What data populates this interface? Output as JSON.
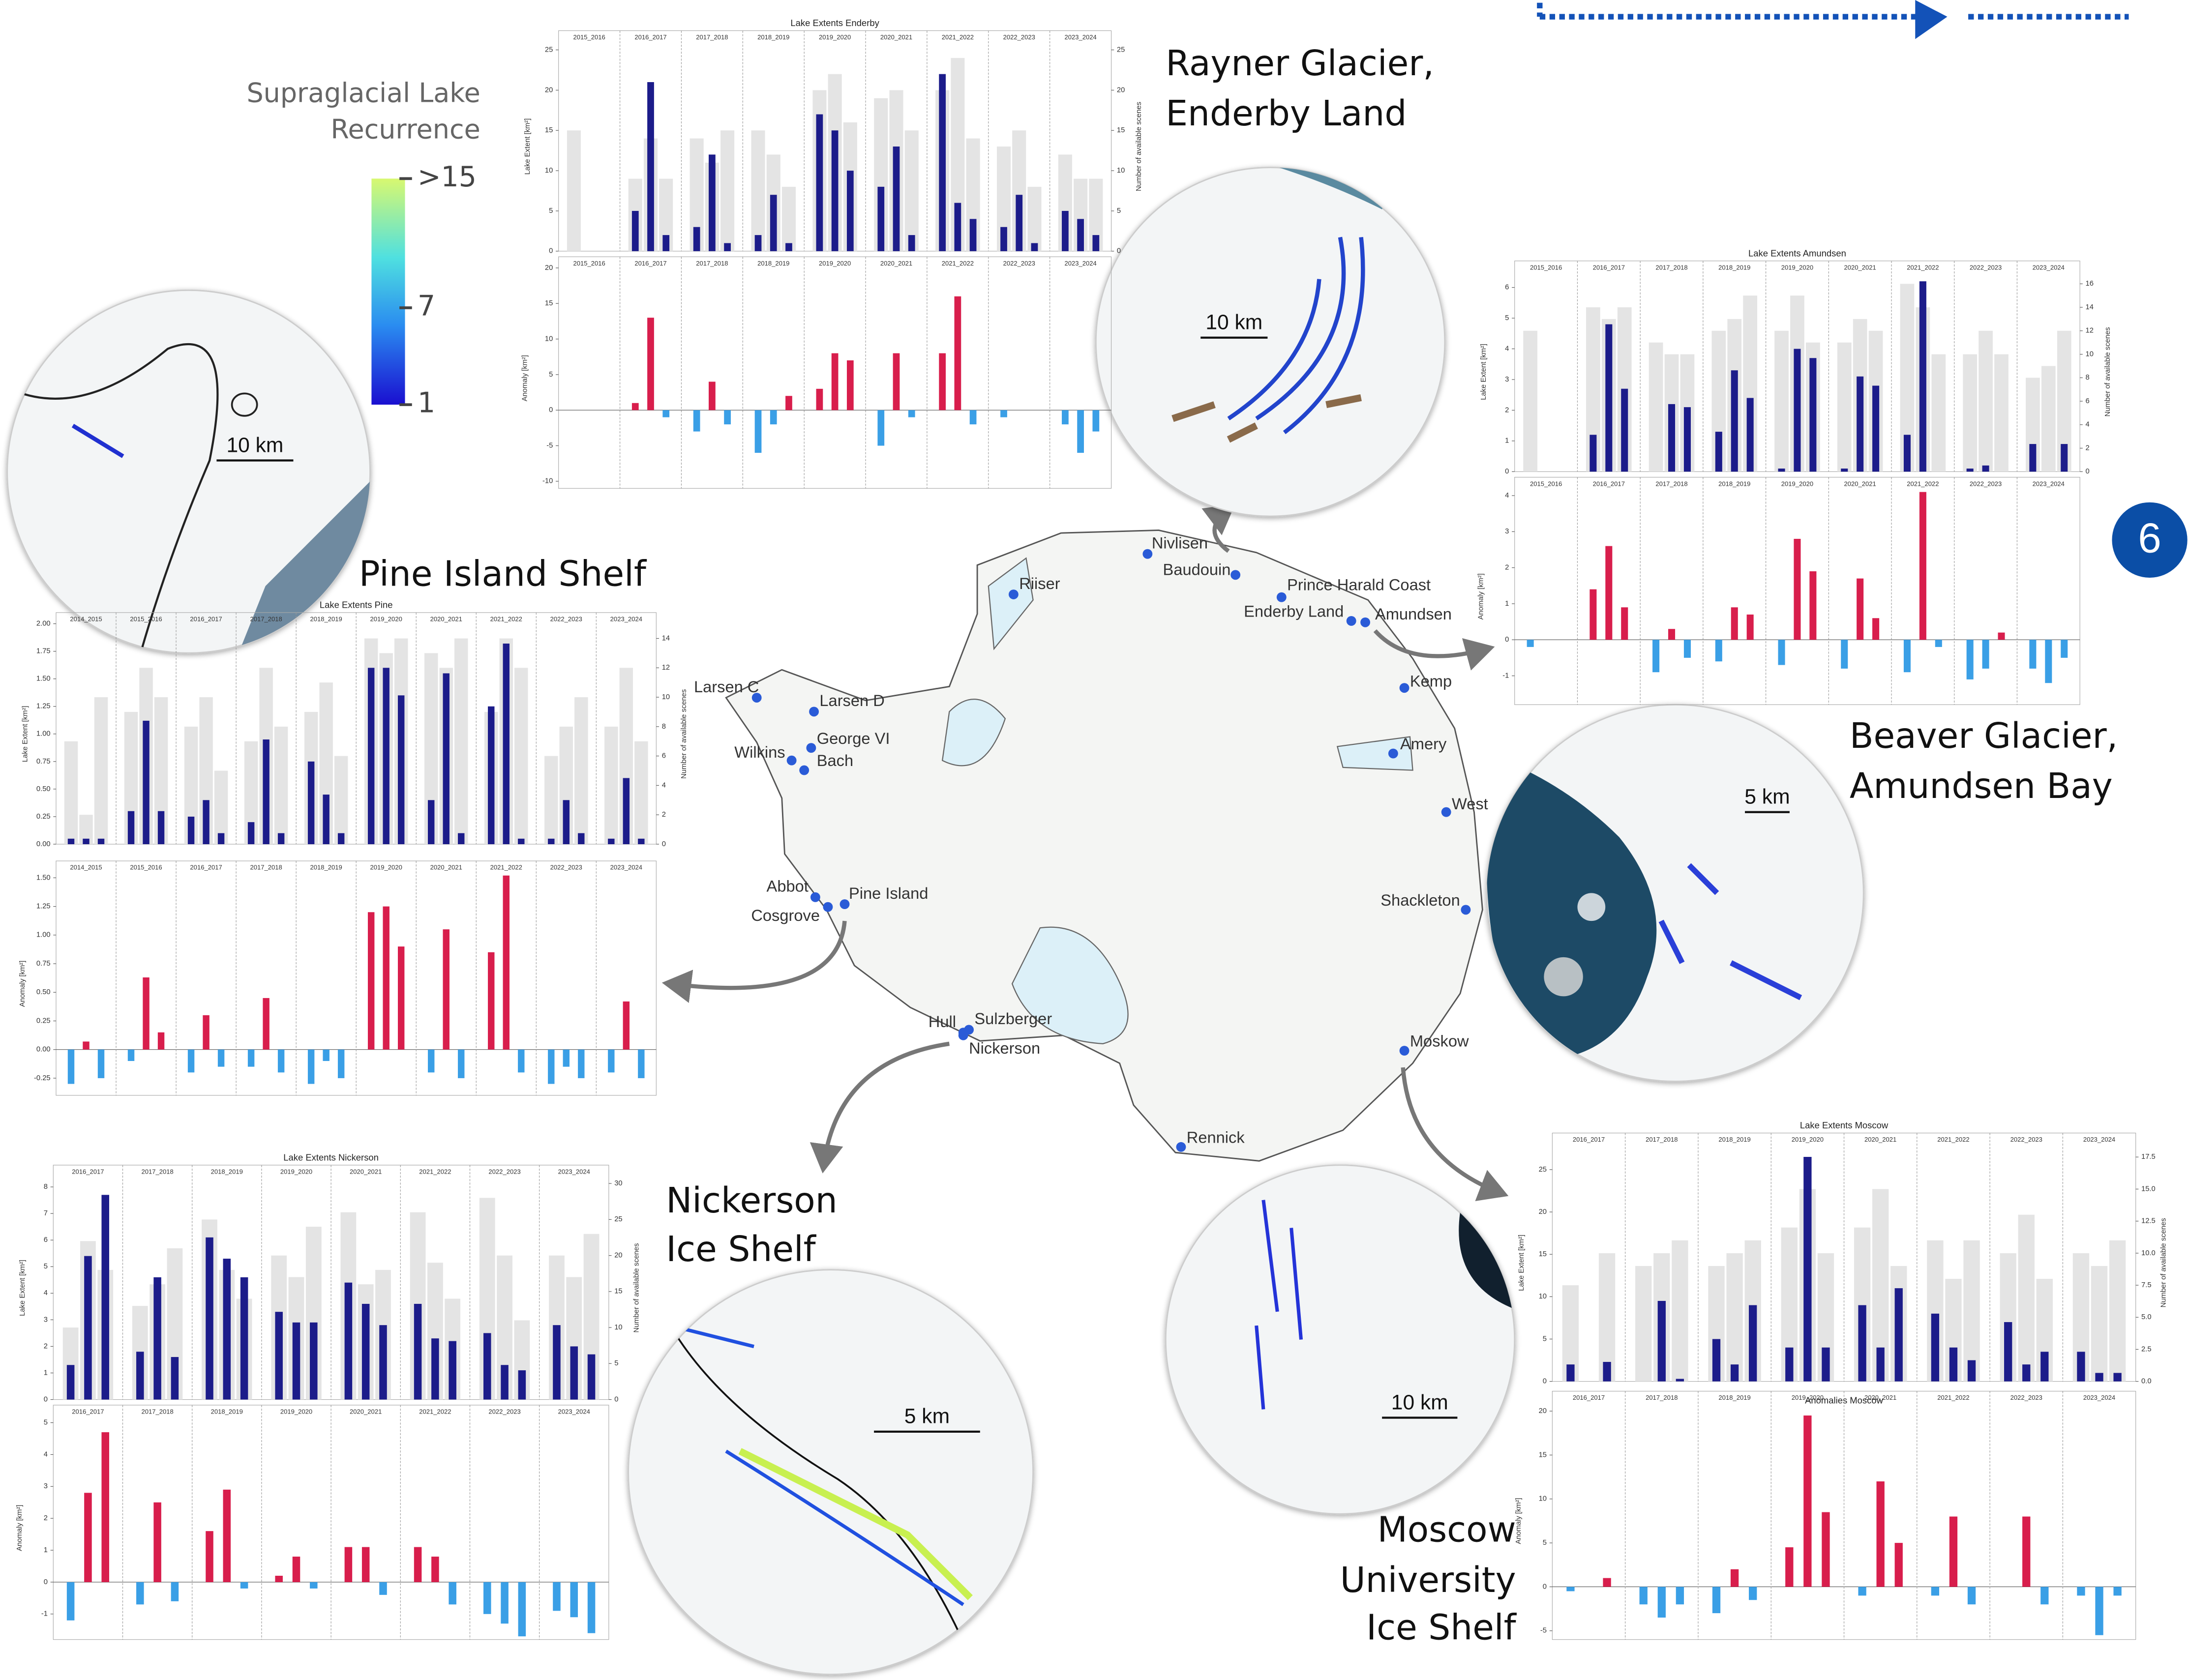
{
  "legend": {
    "title": [
      "Supraglacial Lake",
      "Recurrence"
    ],
    "ticks": [
      {
        "value": 15,
        "label": ">15"
      },
      7,
      1
    ]
  },
  "badge": "6",
  "sites": [
    "Nivlisen",
    "Baudouin",
    "Riiser",
    "Prince Harald Coast",
    "Enderby Land",
    "Amundsen",
    "Larsen C",
    "Larsen D",
    "George VI",
    "Wilkins",
    "Bach",
    "Kemp",
    "Amery",
    "West",
    "Abbot",
    "Pine Island",
    "Cosgrove",
    "Shackleton",
    "Hull",
    "Sulzberger",
    "Nickerson",
    "Moskow",
    "Rennick"
  ],
  "insets": [
    {
      "title": [
        "Pine Island Shelf"
      ],
      "scale": "10 km"
    },
    {
      "title": [
        "Rayner Glacier,",
        "Enderby Land"
      ],
      "scale": "10 km"
    },
    {
      "title": [
        "Beaver Glacier,",
        "Amundsen Bay"
      ],
      "scale": "5 km"
    },
    {
      "title": [
        "Nickerson",
        "Ice Shelf"
      ],
      "scale": "5 km"
    },
    {
      "title": [
        "Moscow",
        "University",
        "Ice Shelf"
      ],
      "scale": "10 km"
    }
  ],
  "colors": {
    "extent": "#1c1c8a",
    "scenes": "#e4e4e4",
    "positive": "#d81e4c",
    "negative": "#3a9fe6"
  },
  "charts": [
    {
      "type": "bar",
      "title": "Lake Extents Enderby",
      "ylabel": "Lake Extent [km²]",
      "y2label": "Number of available scenes",
      "anomaly_label": "Anomaly [km²]",
      "seasons": [
        "2015_2016",
        "2016_2017",
        "2017_2018",
        "2018_2019",
        "2019_2020",
        "2020_2021",
        "2021_2022",
        "2022_2023",
        "2023_2024"
      ],
      "ylim": [
        0,
        26
      ],
      "yticks": [
        0,
        5,
        10,
        15,
        20,
        25
      ],
      "y2lim": [
        0,
        26
      ],
      "y2ticks": [
        0,
        5,
        10,
        15,
        20,
        25
      ],
      "anomaly_ylim": [
        -11,
        20
      ],
      "anomaly_yticks": [
        -10,
        -5,
        0,
        5,
        10,
        15,
        20
      ],
      "extent": [
        [
          0,
          0,
          0
        ],
        [
          5,
          21,
          2
        ],
        [
          3,
          12,
          1
        ],
        [
          2,
          7,
          1
        ],
        [
          17,
          15,
          10
        ],
        [
          8,
          13,
          2
        ],
        [
          22,
          6,
          4
        ],
        [
          3,
          7,
          1
        ],
        [
          5,
          4,
          2
        ]
      ],
      "scenes": [
        [
          15,
          0,
          0
        ],
        [
          9,
          14,
          9
        ],
        [
          14,
          11,
          15
        ],
        [
          15,
          12,
          8
        ],
        [
          20,
          22,
          16
        ],
        [
          19,
          20,
          15
        ],
        [
          20,
          24,
          14
        ],
        [
          13,
          15,
          8
        ],
        [
          12,
          9,
          9
        ]
      ],
      "anomaly": [
        [
          0,
          0,
          0
        ],
        [
          1,
          13,
          -1
        ],
        [
          -3,
          4,
          -2
        ],
        [
          -6,
          -2,
          2
        ],
        [
          3,
          8,
          7
        ],
        [
          -5,
          8,
          -1
        ],
        [
          8,
          16,
          -2
        ],
        [
          -1,
          0,
          0
        ],
        [
          -2,
          -6,
          -3
        ]
      ]
    },
    {
      "type": "bar",
      "title": "Lake Extents Amundsen",
      "ylabel": "Lake Extent [km²]",
      "y2label": "Number of available scenes",
      "anomaly_label": "Anomaly [km²]",
      "seasons": [
        "2015_2016",
        "2016_2017",
        "2017_2018",
        "2018_2019",
        "2019_2020",
        "2020_2021",
        "2021_2022",
        "2022_2023",
        "2023_2024"
      ],
      "ylim": [
        0,
        6.5
      ],
      "yticks": [
        0,
        1,
        2,
        3,
        4,
        5,
        6
      ],
      "y2lim": [
        0,
        17
      ],
      "y2ticks": [
        0,
        2,
        4,
        6,
        8,
        10,
        12,
        14,
        16
      ],
      "anomaly_ylim": [
        -1.8,
        4.2
      ],
      "anomaly_yticks": [
        -1,
        0,
        1,
        2,
        3,
        4
      ],
      "extent": [
        [
          0,
          0,
          0
        ],
        [
          1.2,
          4.8,
          2.7
        ],
        [
          0,
          2.2,
          2.1
        ],
        [
          1.3,
          3.3,
          2.4
        ],
        [
          0.1,
          4,
          3.7
        ],
        [
          0.1,
          3.1,
          2.8
        ],
        [
          1.2,
          6.2,
          0
        ],
        [
          0.1,
          0.2,
          0
        ],
        [
          0.9,
          0,
          0.9
        ]
      ],
      "scenes": [
        [
          12,
          0,
          0
        ],
        [
          14,
          13,
          14
        ],
        [
          11,
          10,
          10
        ],
        [
          12,
          13,
          15
        ],
        [
          12,
          15,
          11
        ],
        [
          11,
          13,
          12
        ],
        [
          16,
          14,
          10
        ],
        [
          10,
          12,
          10
        ],
        [
          8,
          9,
          12
        ]
      ],
      "anomaly": [
        [
          -0.2,
          0,
          0
        ],
        [
          1.4,
          2.6,
          0.9
        ],
        [
          -0.9,
          0.3,
          -0.5
        ],
        [
          -0.6,
          0.9,
          0.7
        ],
        [
          -0.7,
          2.8,
          1.9
        ],
        [
          -0.8,
          1.7,
          0.6
        ],
        [
          -0.9,
          4.1,
          -0.2
        ],
        [
          -1.1,
          -0.8,
          0.2
        ],
        [
          -0.8,
          -1.2,
          -0.5
        ]
      ]
    },
    {
      "type": "bar",
      "title": "Lake Extents Pine",
      "ylabel": "Lake Extent [km²]",
      "y2label": "Number of available scenes",
      "anomaly_label": "Anomaly [km²]",
      "seasons": [
        "2014_2015",
        "2015_2016",
        "2016_2017",
        "2017_2018",
        "2018_2019",
        "2019_2020",
        "2020_2021",
        "2021_2022",
        "2022_2023",
        "2023_2024"
      ],
      "ylim": [
        0,
        2
      ],
      "yticks": [
        {
          "value": 0,
          "label": "0.00"
        },
        0.25,
        {
          "value": 0.5,
          "label": "0.50"
        },
        0.75,
        {
          "value": 1,
          "label": "1.00"
        },
        1.25,
        {
          "value": 1.5,
          "label": "1.50"
        },
        1.75,
        {
          "value": 2,
          "label": "2.00"
        }
      ],
      "y2lim": [
        0,
        15
      ],
      "y2ticks": [
        0,
        2,
        4,
        6,
        8,
        10,
        12,
        14
      ],
      "anomaly_ylim": [
        -0.4,
        1.55
      ],
      "anomaly_yticks": [
        -0.25,
        {
          "value": 0,
          "label": "0.00"
        },
        0.25,
        {
          "value": 0.5,
          "label": "0.50"
        },
        0.75,
        {
          "value": 1,
          "label": "1.00"
        },
        1.25,
        {
          "value": 1.5,
          "label": "1.50"
        }
      ],
      "extent": [
        [
          0.05,
          0.05,
          0.05
        ],
        [
          0.3,
          1.12,
          0.3
        ],
        [
          0.25,
          0.4,
          0.1
        ],
        [
          0.2,
          0.95,
          0.1
        ],
        [
          0.75,
          0.45,
          0.1
        ],
        [
          1.6,
          1.6,
          1.35
        ],
        [
          0.4,
          1.55,
          0.1
        ],
        [
          1.25,
          1.82,
          0.05
        ],
        [
          0.05,
          0.4,
          0.1
        ],
        [
          0.05,
          0.6,
          0.05
        ]
      ],
      "scenes": [
        [
          7,
          2,
          10
        ],
        [
          9,
          12,
          10
        ],
        [
          8,
          10,
          5
        ],
        [
          7,
          12,
          8
        ],
        [
          9,
          11,
          6
        ],
        [
          14,
          13,
          14
        ],
        [
          13,
          12,
          14
        ],
        [
          9,
          14,
          12
        ],
        [
          6,
          8,
          10
        ],
        [
          8,
          12,
          7
        ]
      ],
      "anomaly": [
        [
          -0.3,
          0.07,
          -0.25
        ],
        [
          -0.1,
          0.63,
          0.15
        ],
        [
          -0.2,
          0.3,
          -0.15
        ],
        [
          -0.15,
          0.45,
          -0.2
        ],
        [
          -0.3,
          -0.1,
          -0.25
        ],
        [
          1.2,
          1.25,
          0.9
        ],
        [
          -0.2,
          1.05,
          -0.25
        ],
        [
          0.85,
          1.52,
          -0.2
        ],
        [
          -0.3,
          -0.15,
          -0.25
        ],
        [
          -0.2,
          0.42,
          -0.25
        ]
      ]
    },
    {
      "type": "bar",
      "title": "Lake Extents Nickerson",
      "ylabel": "Lake Extent [km²]",
      "y2label": "Number of available scenes",
      "anomaly_label": "Anomaly [km²]",
      "seasons": [
        "2016_2017",
        "2017_2018",
        "2018_2019",
        "2019_2020",
        "2020_2021",
        "2021_2022",
        "2022_2023",
        "2023_2024"
      ],
      "ylim": [
        0,
        8.4
      ],
      "yticks": [
        0,
        1,
        2,
        3,
        4,
        5,
        6,
        7,
        8
      ],
      "y2lim": [
        0,
        31
      ],
      "y2ticks": [
        0,
        5,
        10,
        15,
        20,
        25,
        30
      ],
      "anomaly_ylim": [
        -1.8,
        5.2
      ],
      "anomaly_yticks": [
        -1,
        0,
        1,
        2,
        3,
        4,
        5
      ],
      "extent": [
        [
          1.3,
          5.4,
          7.7
        ],
        [
          1.8,
          4.6,
          1.6
        ],
        [
          6.1,
          5.3,
          4.6
        ],
        [
          3.3,
          2.9,
          2.9
        ],
        [
          4.4,
          3.6,
          2.8
        ],
        [
          3.6,
          2.3,
          2.2
        ],
        [
          2.5,
          1.3,
          1.1
        ],
        [
          2.8,
          2,
          1.7
        ]
      ],
      "scenes": [
        [
          10,
          22,
          18
        ],
        [
          13,
          16,
          21
        ],
        [
          25,
          18,
          14
        ],
        [
          20,
          17,
          24
        ],
        [
          26,
          16,
          18
        ],
        [
          26,
          19,
          14
        ],
        [
          28,
          20,
          11
        ],
        [
          20,
          17,
          23
        ]
      ],
      "anomaly": [
        [
          -1.2,
          2.8,
          4.7
        ],
        [
          -0.7,
          2.5,
          -0.6
        ],
        [
          1.6,
          2.9,
          -0.2
        ],
        [
          0.2,
          0.8,
          -0.2
        ],
        [
          1.1,
          1.1,
          -0.4
        ],
        [
          1.1,
          0.8,
          -0.7
        ],
        [
          -1,
          -1.3,
          -1.7
        ],
        [
          -0.9,
          -1.1,
          -1.6
        ]
      ]
    },
    {
      "type": "bar",
      "title": "Lake Extents Moscow",
      "anomaly_title": "Anomalies Moscow",
      "ylabel": "Lake Extent [km²]",
      "y2label": "Number of available scenes",
      "anomaly_label": "Anomaly [km²]",
      "seasons": [
        "2016_2017",
        "2017_2018",
        "2018_2019",
        "2019_2020",
        "2020_2021",
        "2021_2022",
        "2022_2023",
        "2023_2024"
      ],
      "ylim": [
        0,
        28
      ],
      "yticks": [
        0,
        5,
        10,
        15,
        20,
        25
      ],
      "y2lim": [
        0,
        18.5
      ],
      "y2ticks": [
        {
          "value": 0,
          "label": "0.0"
        },
        2.5,
        {
          "value": 5,
          "label": "5.0"
        },
        7.5,
        {
          "value": 10,
          "label": "10.0"
        },
        12.5,
        {
          "value": 15,
          "label": "15.0"
        },
        17.5
      ],
      "anomaly_ylim": [
        -6,
        21
      ],
      "anomaly_yticks": [
        -5,
        0,
        5,
        10,
        15,
        20
      ],
      "extent": [
        [
          2,
          0,
          2.3
        ],
        [
          0,
          9.5,
          0.3
        ],
        [
          5,
          2,
          9
        ],
        [
          4,
          26.5,
          4
        ],
        [
          9,
          4,
          11
        ],
        [
          8,
          4,
          2.5
        ],
        [
          7,
          2,
          3.5
        ],
        [
          3.5,
          1,
          1
        ]
      ],
      "scenes": [
        [
          7.5,
          0,
          10
        ],
        [
          9,
          10,
          11
        ],
        [
          9,
          10,
          11
        ],
        [
          12,
          15,
          10
        ],
        [
          12,
          15,
          9
        ],
        [
          11,
          8,
          11
        ],
        [
          10,
          13,
          8
        ],
        [
          10,
          9,
          11
        ]
      ],
      "anomaly": [
        [
          -0.5,
          0,
          1
        ],
        [
          -2,
          -3.5,
          -2
        ],
        [
          -3,
          2,
          -1.5
        ],
        [
          4.5,
          19.5,
          8.5
        ],
        [
          -1,
          12,
          5
        ],
        [
          -1,
          8,
          -2
        ],
        [
          0,
          8,
          -2
        ],
        [
          -1,
          -5.5,
          -1
        ]
      ]
    }
  ]
}
